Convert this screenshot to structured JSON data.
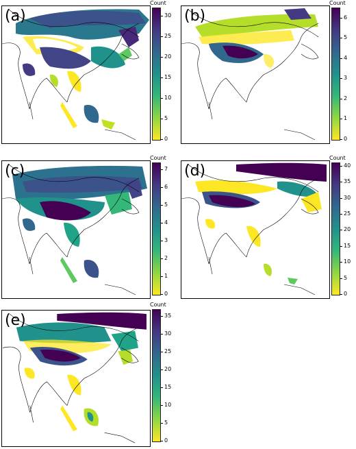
{
  "legend_title": "Count",
  "colors": {
    "viridis_low": "#fde725",
    "viridis_mid": "#21918c",
    "viridis_high": "#440154",
    "coastline": "#000000"
  },
  "panels": [
    {
      "id": "a",
      "label": "(a)",
      "ticks": [
        "30",
        "25",
        "20",
        "15",
        "10",
        "5",
        "0"
      ],
      "max": 32
    },
    {
      "id": "b",
      "label": "(b)",
      "ticks": [
        "6",
        "5",
        "4",
        "3",
        "2",
        "1",
        "0"
      ],
      "max": 6.5
    },
    {
      "id": "c",
      "label": "(c)",
      "ticks": [
        "7",
        "6",
        "5",
        "4",
        "3",
        "2",
        "1",
        "0"
      ],
      "max": 7.4
    },
    {
      "id": "d",
      "label": "(d)",
      "ticks": [
        "40",
        "35",
        "30",
        "25",
        "20",
        "15",
        "10",
        "5",
        "0"
      ],
      "max": 41
    },
    {
      "id": "e",
      "label": "(e)",
      "ticks": [
        "35",
        "30",
        "25",
        "20",
        "15",
        "10",
        "5",
        "0"
      ],
      "max": 37
    }
  ]
}
